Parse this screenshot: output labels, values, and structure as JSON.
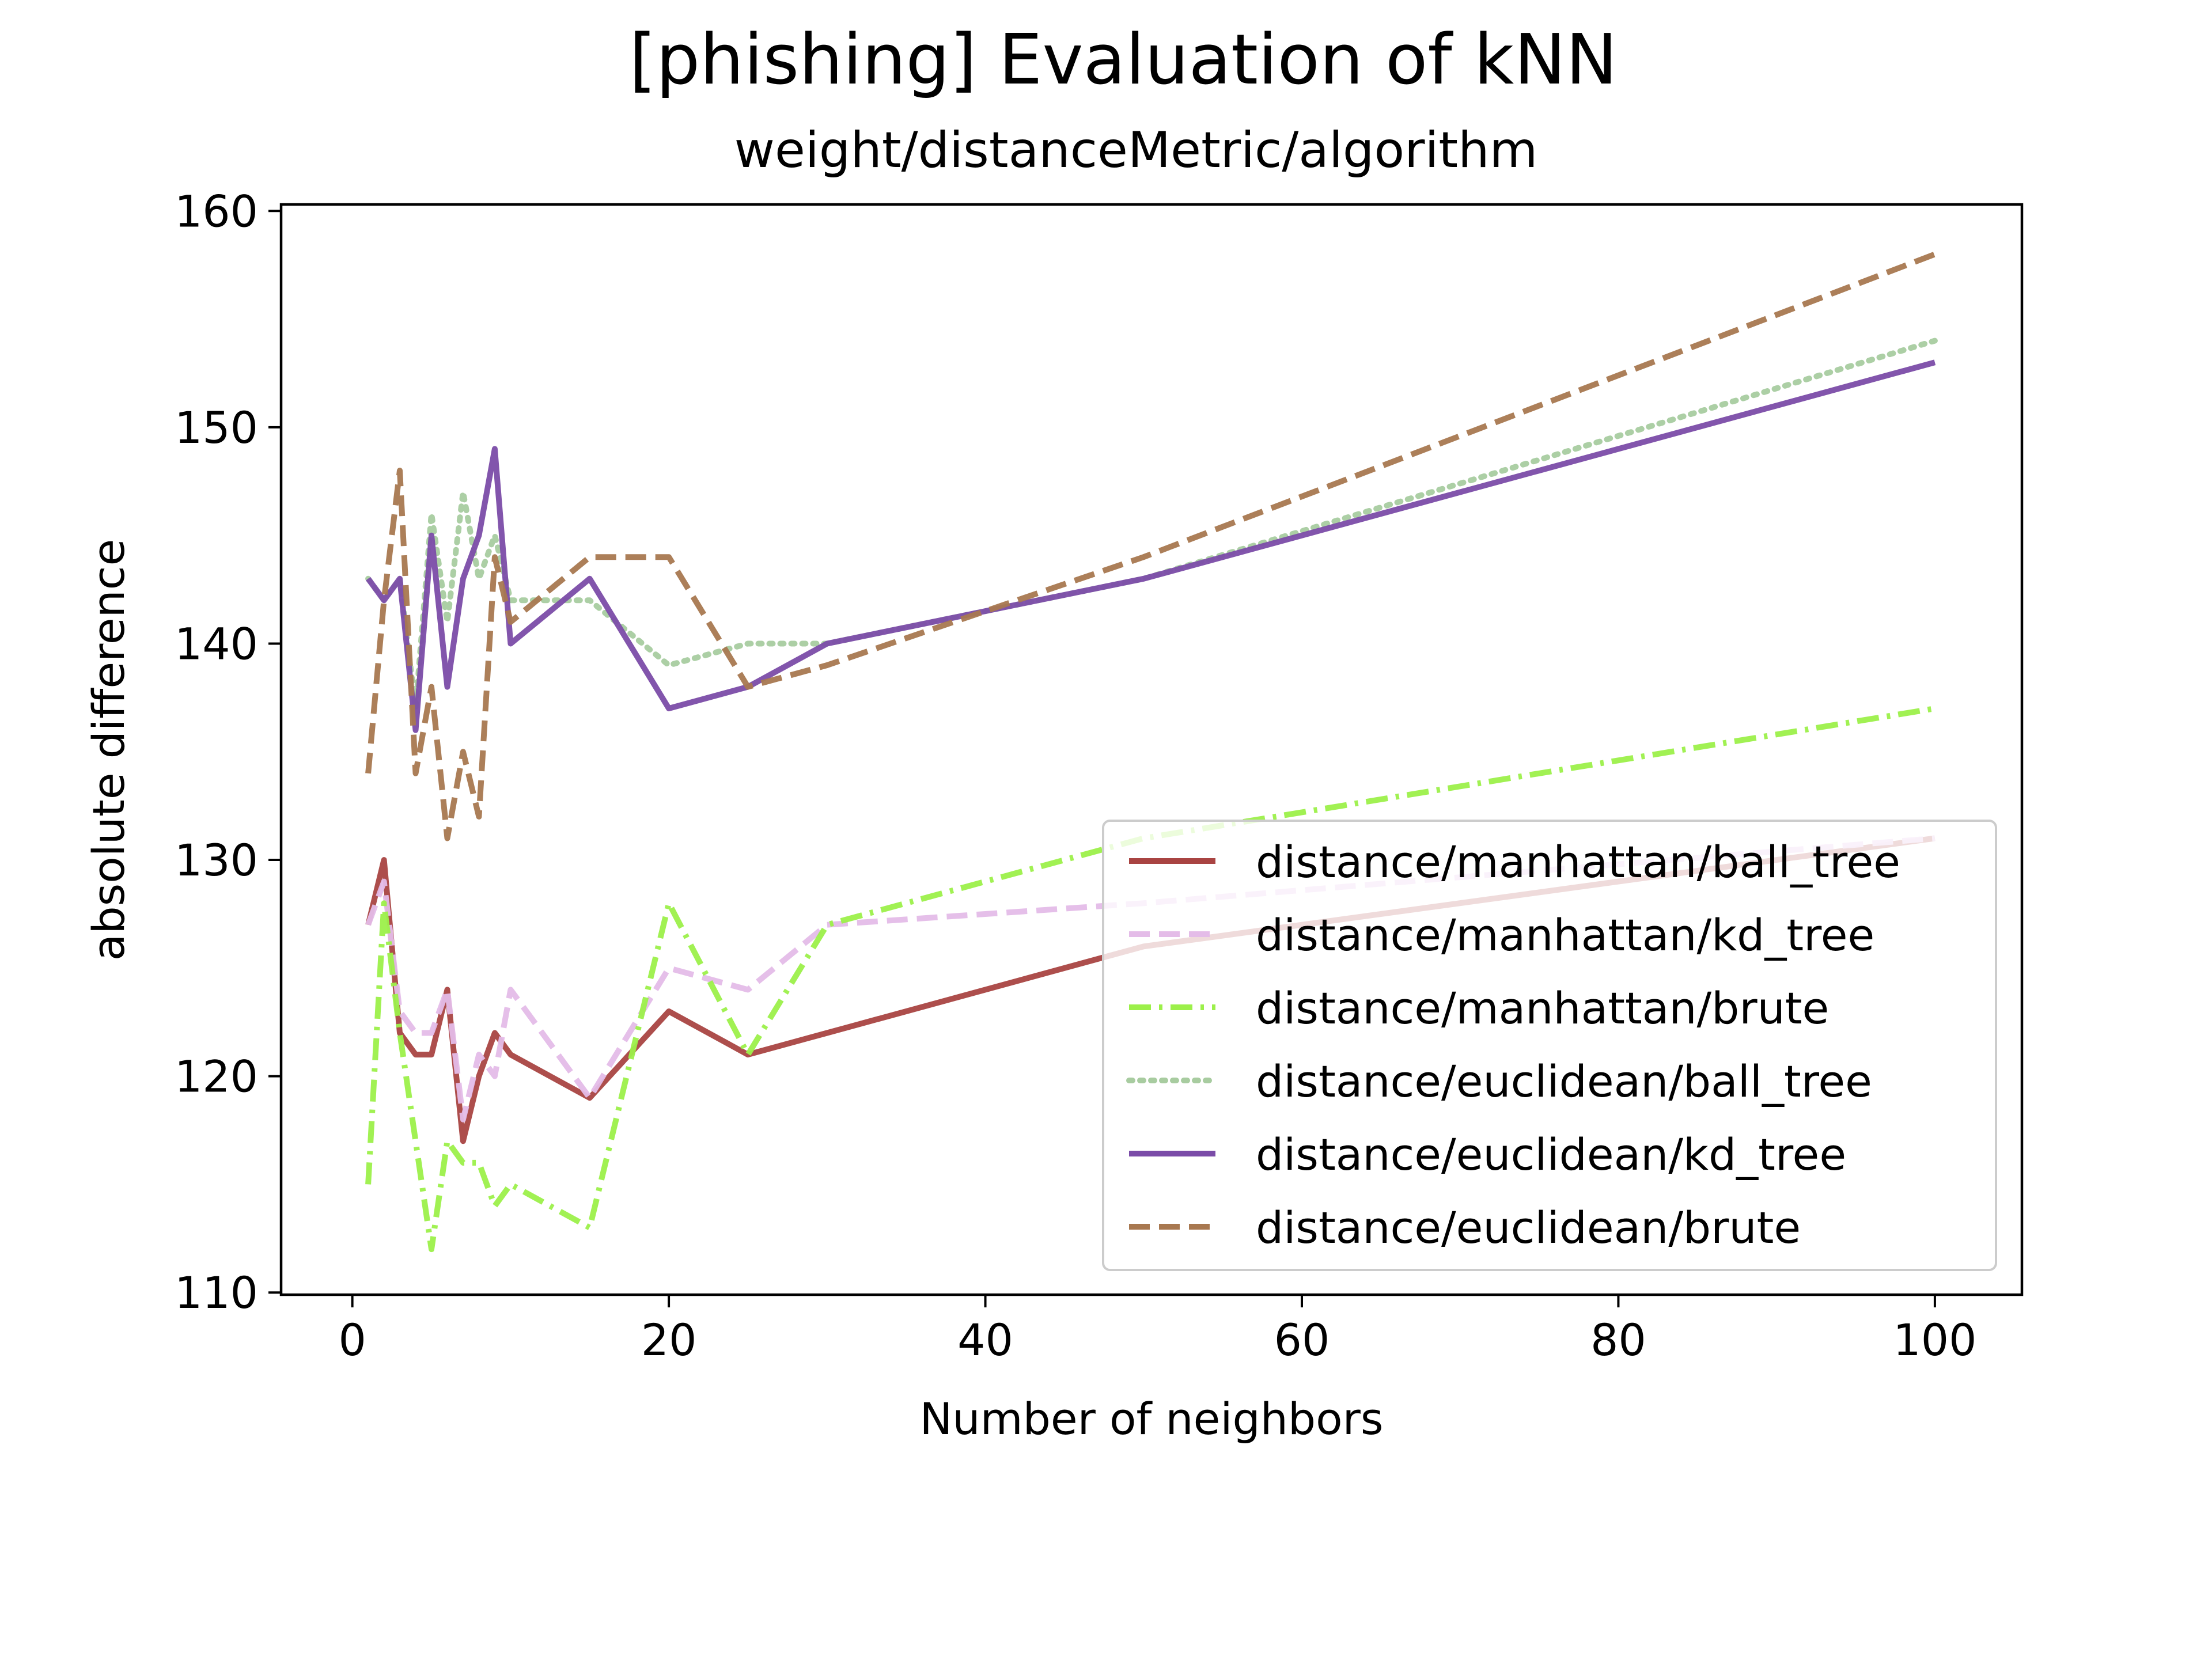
{
  "chart_data": {
    "type": "line",
    "title": "[phishing] Evaluation of kNN",
    "subtitle": "weight/distanceMetric/algorithm",
    "xlabel": "Number of neighbors",
    "ylabel": "absolute difference",
    "xlim": [
      -4.5,
      105.5
    ],
    "ylim": [
      109.9,
      160.3
    ],
    "xticks": [
      0,
      20,
      40,
      60,
      80,
      100
    ],
    "yticks": [
      110,
      120,
      130,
      140,
      150,
      160
    ],
    "grid": false,
    "legend_position": "lower right",
    "x": [
      1,
      2,
      3,
      4,
      5,
      6,
      7,
      8,
      9,
      10,
      15,
      20,
      25,
      30,
      40,
      50,
      100
    ],
    "series": [
      {
        "name": "distance/manhattan/ball_tree",
        "color": "#a94442",
        "dash": "solid",
        "values": [
          127,
          130,
          122,
          121,
          121,
          124,
          117,
          120,
          122,
          121,
          119,
          123,
          121,
          122,
          124,
          126,
          131
        ]
      },
      {
        "name": "distance/manhattan/kd_tree",
        "color": "#e4bce8",
        "dash": "dashed",
        "values": [
          127,
          129,
          123,
          122,
          122,
          124,
          118,
          121,
          120,
          124,
          119,
          125,
          124,
          127,
          127.5,
          128,
          131
        ]
      },
      {
        "name": "distance/manhattan/brute",
        "color": "#9cf04a",
        "dash": "dashdot",
        "values": [
          115,
          128,
          122,
          117,
          112,
          117,
          116,
          116,
          114,
          115,
          113,
          128,
          121,
          127,
          129,
          131,
          137
        ]
      },
      {
        "name": "distance/euclidean/ball_tree",
        "color": "#a8cca0",
        "dash": "dotted",
        "values": [
          143,
          142,
          143,
          137,
          146,
          141,
          147,
          143,
          145,
          142,
          142,
          139,
          140,
          140,
          141.5,
          143,
          154
        ]
      },
      {
        "name": "distance/euclidean/kd_tree",
        "color": "#7b4ca8",
        "dash": "solid",
        "values": [
          143,
          142,
          143,
          136,
          145,
          138,
          143,
          145,
          149,
          140,
          143,
          137,
          138,
          140,
          141.5,
          143,
          153
        ]
      },
      {
        "name": "distance/euclidean/brute",
        "color": "#a87850",
        "dash": "dashed",
        "values": [
          134,
          142,
          148,
          134,
          138,
          131,
          135,
          132,
          144,
          141,
          144,
          144,
          138,
          139,
          141.5,
          144,
          158
        ]
      }
    ]
  }
}
